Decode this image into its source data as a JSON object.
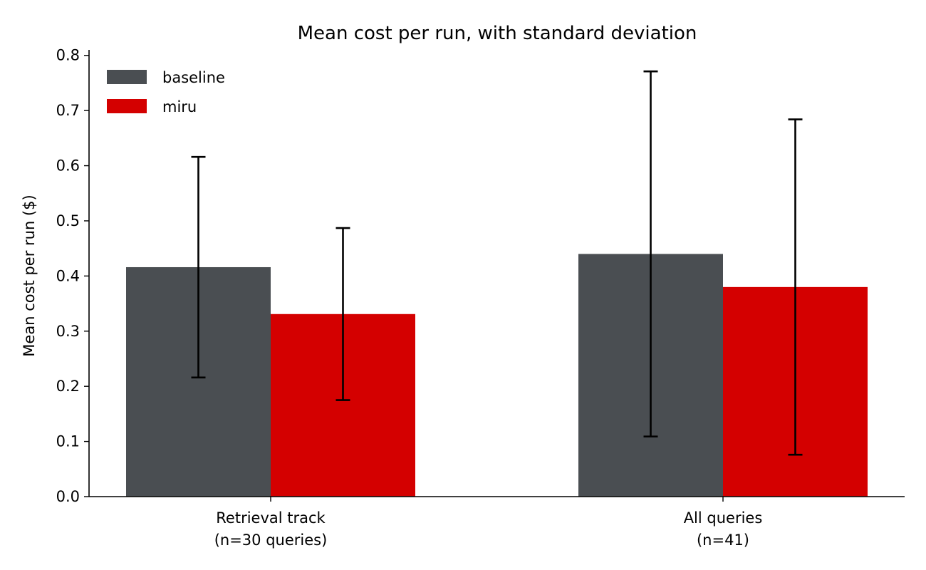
{
  "chart_data": {
    "type": "bar",
    "title": "Mean cost per run, with standard deviation",
    "xlabel": "",
    "ylabel": "Mean cost per run ($)",
    "categories": [
      [
        "Retrieval track",
        "(n=30 queries)"
      ],
      [
        "All queries",
        "(n=41)"
      ]
    ],
    "series": [
      {
        "name": "baseline",
        "color": "#4a4e52",
        "values": [
          0.416,
          0.44
        ],
        "std": [
          0.2,
          0.331
        ]
      },
      {
        "name": "miru",
        "color": "#d40000",
        "values": [
          0.331,
          0.38
        ],
        "std": [
          0.156,
          0.304
        ]
      }
    ],
    "ylim": [
      0,
      0.81
    ],
    "yticks": [
      "0.0",
      "0.1",
      "0.2",
      "0.3",
      "0.4",
      "0.5",
      "0.6",
      "0.7",
      "0.8"
    ],
    "legend_position": "top-left",
    "grid": false
  }
}
